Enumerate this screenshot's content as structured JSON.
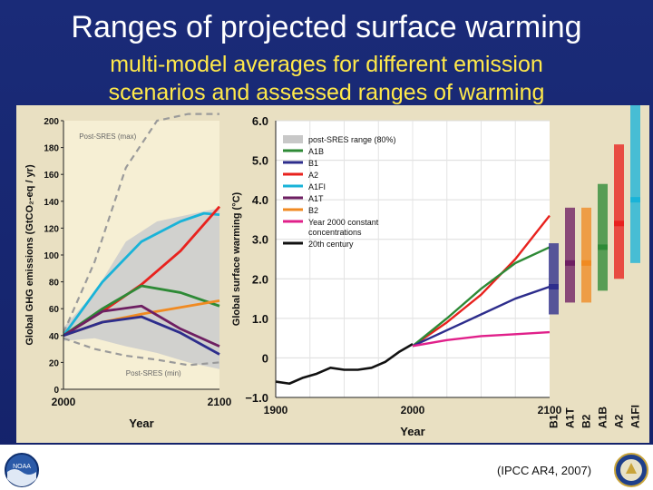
{
  "slide": {
    "title": "Ranges of projected surface warming",
    "subtitle_lines": [
      "multi-model averages for different emission",
      "scenarios and assessed ranges of warming"
    ],
    "citation": "(IPCC AR4, 2007)",
    "left_logo_text": "NOAA",
    "colors": {
      "background": "#1a2b78",
      "title": "#ffffff",
      "subtitle": "#ffe94a"
    }
  },
  "chart_data": [
    {
      "type": "line",
      "title": "",
      "xlabel": "Year",
      "ylabel": "Global GHG emissions (GtCO₂-eq / yr)",
      "xlim": [
        2000,
        2100
      ],
      "ylim": [
        0,
        200
      ],
      "xticks": [
        2000,
        2100
      ],
      "yticks": [
        0,
        20,
        40,
        60,
        80,
        100,
        120,
        140,
        160,
        180,
        200
      ],
      "ytick_labels": [
        "0",
        "20",
        "40",
        "60",
        "80",
        "100",
        "120",
        "140",
        "160",
        "180",
        "200"
      ],
      "annotations": [
        "Post-SRES (max)",
        "Post-SRES (min)"
      ],
      "band": {
        "x": [
          2000,
          2020,
          2040,
          2060,
          2080,
          2100
        ],
        "lower": [
          36,
          38,
          32,
          27,
          20,
          15
        ],
        "upper": [
          46,
          72,
          110,
          125,
          130,
          135
        ]
      },
      "dashed": [
        {
          "x": [
            2000,
            2020,
            2040,
            2060,
            2080,
            2100
          ],
          "values": [
            42,
            95,
            165,
            200,
            205,
            205
          ]
        },
        {
          "x": [
            2000,
            2020,
            2040,
            2060,
            2080,
            2100
          ],
          "values": [
            38,
            30,
            25,
            22,
            18,
            20
          ]
        }
      ],
      "series": [
        {
          "name": "A1FI",
          "color": "#19b3d8",
          "x": [
            2000,
            2025,
            2050,
            2075,
            2090,
            2100
          ],
          "values": [
            40,
            80,
            110,
            125,
            131,
            130
          ]
        },
        {
          "name": "A2",
          "color": "#e8221e",
          "x": [
            2000,
            2025,
            2050,
            2075,
            2100
          ],
          "values": [
            40,
            58,
            78,
            103,
            136
          ]
        },
        {
          "name": "A1B",
          "color": "#2e8a36",
          "x": [
            2000,
            2025,
            2050,
            2075,
            2100
          ],
          "values": [
            40,
            60,
            77,
            72,
            62
          ]
        },
        {
          "name": "B2",
          "color": "#f08a22",
          "x": [
            2000,
            2025,
            2050,
            2075,
            2100
          ],
          "values": [
            40,
            50,
            56,
            61,
            66
          ]
        },
        {
          "name": "A1T",
          "color": "#6e1f62",
          "x": [
            2000,
            2025,
            2050,
            2075,
            2100
          ],
          "values": [
            40,
            58,
            62,
            45,
            32
          ]
        },
        {
          "name": "B1",
          "color": "#2d2d8c",
          "x": [
            2000,
            2025,
            2050,
            2075,
            2100
          ],
          "values": [
            40,
            50,
            54,
            42,
            26
          ]
        }
      ]
    },
    {
      "type": "line",
      "title": "",
      "xlabel": "Year",
      "ylabel": "Global surface warming (°C)",
      "xlim": [
        1900,
        2100
      ],
      "ylim": [
        -1,
        6
      ],
      "xticks": [
        1900,
        2000,
        2100
      ],
      "yticks": [
        -1,
        0,
        1,
        2,
        3,
        4,
        5,
        6
      ],
      "ytick_labels": [
        "−1.0",
        "0",
        "1.0",
        "2.0",
        "3.0",
        "4.0",
        "5.0",
        "6.0"
      ],
      "grid": true,
      "legend_position": "top-left",
      "legend": [
        {
          "label": "post-SRES range (80%)",
          "color": "#c8c8c8",
          "kind": "band"
        },
        {
          "label": "A1B",
          "color": "#2e8a36"
        },
        {
          "label": "B1",
          "color": "#2d2d8c"
        },
        {
          "label": "A2",
          "color": "#e8221e"
        },
        {
          "label": "A1FI",
          "color": "#19b3d8"
        },
        {
          "label": "A1T",
          "color": "#6e1f62"
        },
        {
          "label": "B2",
          "color": "#f08a22"
        },
        {
          "label": "Year 2000 constant concentrations",
          "color": "#e0208a"
        },
        {
          "label": "20th century",
          "color": "#111111"
        }
      ],
      "series": [
        {
          "name": "20th century",
          "color": "#111111",
          "x": [
            1900,
            1910,
            1920,
            1930,
            1940,
            1950,
            1960,
            1970,
            1980,
            1990,
            2000
          ],
          "values": [
            -0.6,
            -0.65,
            -0.5,
            -0.4,
            -0.25,
            -0.3,
            -0.3,
            -0.25,
            -0.1,
            0.15,
            0.35
          ]
        },
        {
          "name": "A2",
          "color": "#e8221e",
          "x": [
            2000,
            2025,
            2050,
            2075,
            2100
          ],
          "values": [
            0.3,
            0.9,
            1.6,
            2.5,
            3.6
          ]
        },
        {
          "name": "A1B",
          "color": "#2e8a36",
          "x": [
            2000,
            2025,
            2050,
            2075,
            2100
          ],
          "values": [
            0.3,
            1.0,
            1.75,
            2.4,
            2.8
          ]
        },
        {
          "name": "B1",
          "color": "#2d2d8c",
          "x": [
            2000,
            2025,
            2050,
            2075,
            2100
          ],
          "values": [
            0.3,
            0.7,
            1.1,
            1.5,
            1.8
          ]
        },
        {
          "name": "Year 2000 constant concentrations",
          "color": "#e0208a",
          "x": [
            2000,
            2025,
            2050,
            2075,
            2100
          ],
          "values": [
            0.3,
            0.45,
            0.55,
            0.6,
            0.65
          ]
        }
      ],
      "scenario_ranges": [
        {
          "name": "B1",
          "color": "#2d2d8c",
          "min": 1.1,
          "max": 2.9,
          "best": 1.8
        },
        {
          "name": "A1T",
          "color": "#6e1f62",
          "min": 1.4,
          "max": 3.8,
          "best": 2.4
        },
        {
          "name": "B2",
          "color": "#f08a22",
          "min": 1.4,
          "max": 3.8,
          "best": 2.4
        },
        {
          "name": "A1B",
          "color": "#2e8a36",
          "min": 1.7,
          "max": 4.4,
          "best": 2.8
        },
        {
          "name": "A2",
          "color": "#e8221e",
          "min": 2.0,
          "max": 5.4,
          "best": 3.4
        },
        {
          "name": "A1FI",
          "color": "#19b3d8",
          "min": 2.4,
          "max": 6.4,
          "best": 4.0
        }
      ]
    }
  ]
}
